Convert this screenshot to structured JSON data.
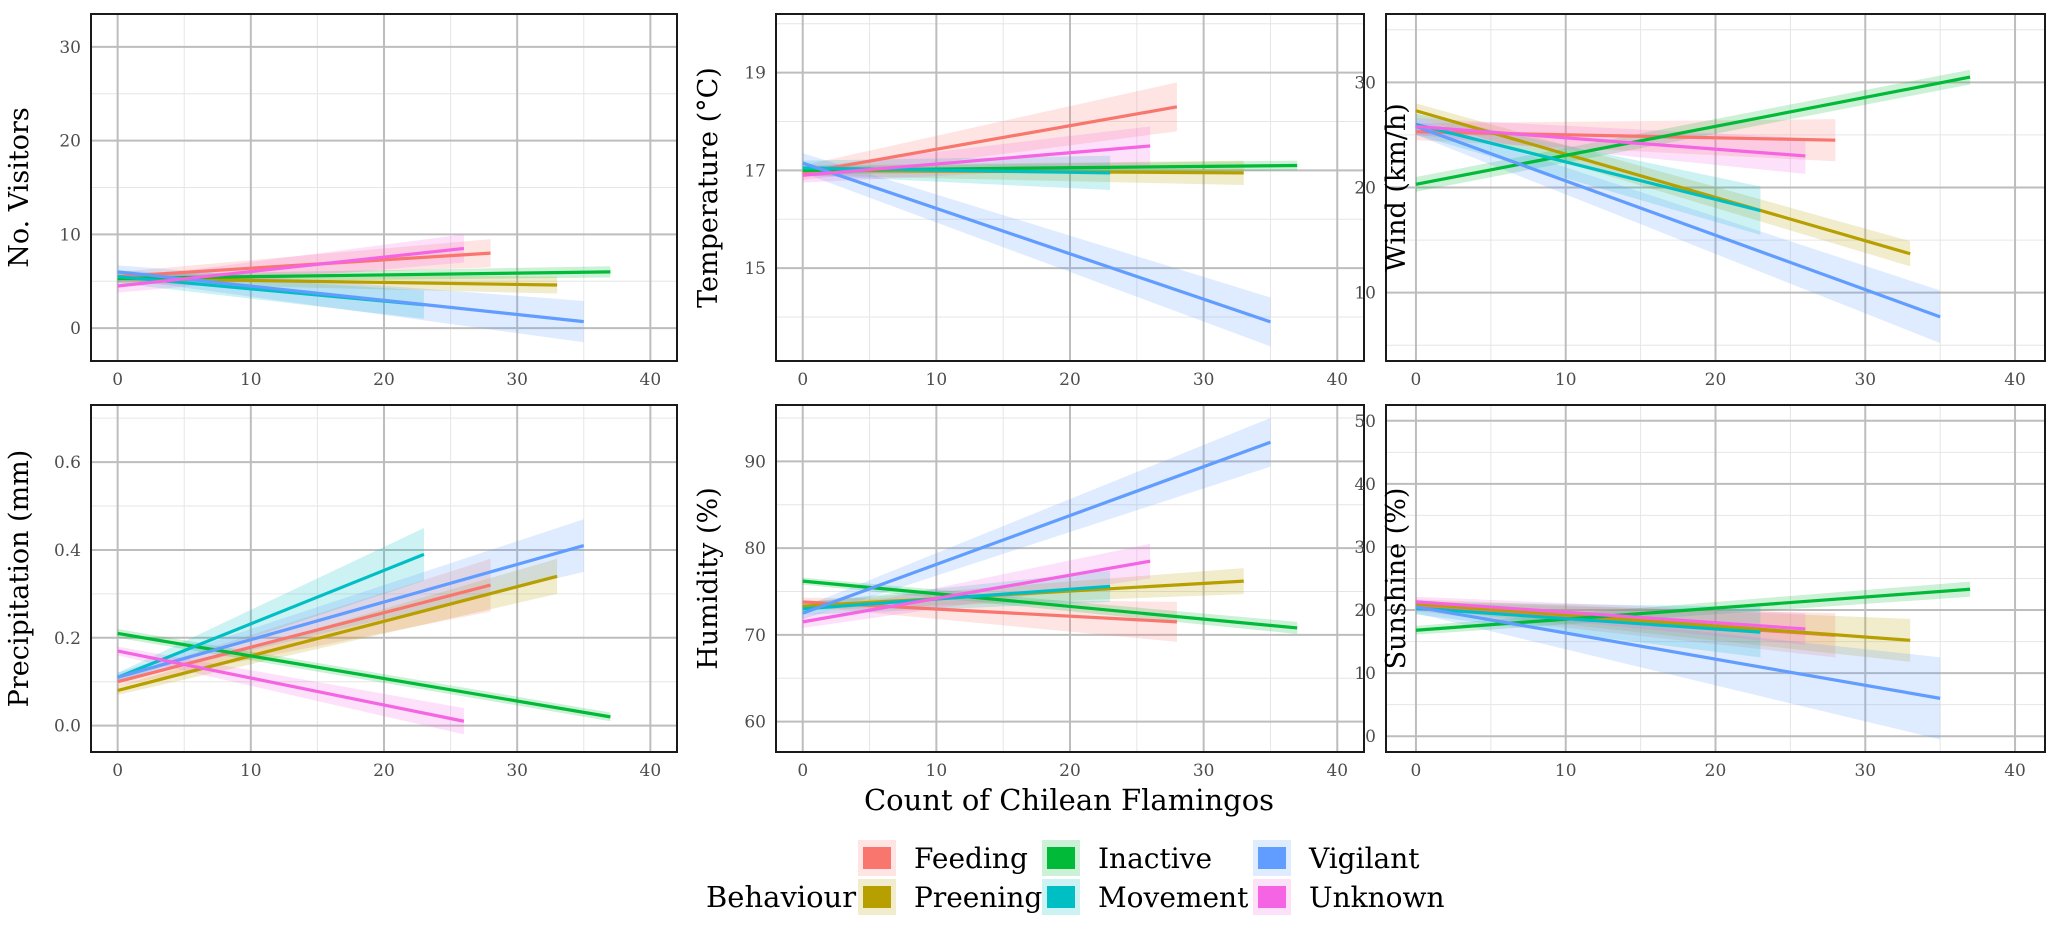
{
  "chart_data": {
    "type": "line",
    "x_axis_title": "Count of Chilean Flamingos",
    "legend": {
      "title": "Behaviour",
      "items": [
        {
          "name": "Feeding",
          "color": "#F8766D"
        },
        {
          "name": "Preening",
          "color": "#B79F00"
        },
        {
          "name": "Inactive",
          "color": "#00BA38"
        },
        {
          "name": "Movement",
          "color": "#00BFC4"
        },
        {
          "name": "Vigilant",
          "color": "#619CFF"
        },
        {
          "name": "Unknown",
          "color": "#F564E3"
        }
      ]
    },
    "panels": [
      {
        "ylabel": "No. Visitors",
        "xlim": [
          -2,
          42
        ],
        "ylim": [
          -3.5,
          33.5
        ],
        "xticks": [
          0,
          10,
          20,
          30,
          40
        ],
        "yticks": [
          0,
          10,
          20,
          30
        ],
        "series": [
          {
            "name": "Feeding",
            "x": [
              0,
              28
            ],
            "y": [
              5.5,
              8.0
            ],
            "band": [
              [
                5.0,
                6.0
              ],
              [
                6.5,
                9.5
              ]
            ]
          },
          {
            "name": "Preening",
            "x": [
              0,
              33
            ],
            "y": [
              5.3,
              4.6
            ],
            "band": [
              [
                4.8,
                5.8
              ],
              [
                3.7,
                5.5
              ]
            ]
          },
          {
            "name": "Inactive",
            "x": [
              0,
              37
            ],
            "y": [
              5.3,
              6.0
            ],
            "band": [
              [
                4.9,
                5.7
              ],
              [
                5.4,
                6.6
              ]
            ]
          },
          {
            "name": "Movement",
            "x": [
              0,
              23
            ],
            "y": [
              5.5,
              2.5
            ],
            "band": [
              [
                4.8,
                6.2
              ],
              [
                1.0,
                4.0
              ]
            ]
          },
          {
            "name": "Vigilant",
            "x": [
              0,
              35
            ],
            "y": [
              6.0,
              0.7
            ],
            "band": [
              [
                5.3,
                6.7
              ],
              [
                -1.5,
                2.9
              ]
            ]
          },
          {
            "name": "Unknown",
            "x": [
              0,
              26
            ],
            "y": [
              4.5,
              8.5
            ],
            "band": [
              [
                3.8,
                5.2
              ],
              [
                7.0,
                10.0
              ]
            ]
          }
        ]
      },
      {
        "ylabel": "Temperature (°C)",
        "xlim": [
          -2,
          42
        ],
        "ylim": [
          13.1,
          20.2
        ],
        "xticks": [
          0,
          10,
          20,
          30,
          40
        ],
        "yticks": [
          15,
          17,
          19
        ],
        "series": [
          {
            "name": "Feeding",
            "x": [
              0,
              28
            ],
            "y": [
              16.95,
              18.3
            ],
            "band": [
              [
                16.8,
                17.1
              ],
              [
                17.8,
                18.8
              ]
            ]
          },
          {
            "name": "Preening",
            "x": [
              0,
              33
            ],
            "y": [
              17.0,
              16.95
            ],
            "band": [
              [
                16.9,
                17.1
              ],
              [
                16.7,
                17.2
              ]
            ]
          },
          {
            "name": "Inactive",
            "x": [
              0,
              37
            ],
            "y": [
              17.0,
              17.1
            ],
            "band": [
              [
                16.92,
                17.08
              ],
              [
                17.0,
                17.2
              ]
            ]
          },
          {
            "name": "Movement",
            "x": [
              0,
              23
            ],
            "y": [
              17.05,
              16.95
            ],
            "band": [
              [
                16.9,
                17.2
              ],
              [
                16.6,
                17.3
              ]
            ]
          },
          {
            "name": "Vigilant",
            "x": [
              0,
              35
            ],
            "y": [
              17.15,
              13.9
            ],
            "band": [
              [
                16.95,
                17.35
              ],
              [
                13.4,
                14.4
              ]
            ]
          },
          {
            "name": "Unknown",
            "x": [
              0,
              26
            ],
            "y": [
              16.9,
              17.5
            ],
            "band": [
              [
                16.75,
                17.05
              ],
              [
                17.1,
                17.9
              ]
            ]
          }
        ]
      },
      {
        "ylabel": "Wind (km/h)",
        "xlim": [
          -2,
          42
        ],
        "ylim": [
          3.5,
          36.5
        ],
        "xticks": [
          0,
          10,
          20,
          30,
          40
        ],
        "yticks": [
          10,
          20,
          30
        ],
        "series": [
          {
            "name": "Feeding",
            "x": [
              0,
              28
            ],
            "y": [
              25.3,
              24.5
            ],
            "band": [
              [
                24.5,
                26.1
              ],
              [
                22.5,
                26.5
              ]
            ]
          },
          {
            "name": "Preening",
            "x": [
              0,
              33
            ],
            "y": [
              27.3,
              13.7
            ],
            "band": [
              [
                26.6,
                28.0
              ],
              [
                12.5,
                14.9
              ]
            ]
          },
          {
            "name": "Inactive",
            "x": [
              0,
              37
            ],
            "y": [
              20.3,
              30.5
            ],
            "band": [
              [
                19.6,
                21.0
              ],
              [
                29.8,
                31.2
              ]
            ]
          },
          {
            "name": "Movement",
            "x": [
              0,
              23
            ],
            "y": [
              26.0,
              17.8
            ],
            "band": [
              [
                25.0,
                27.0
              ],
              [
                15.5,
                20.1
              ]
            ]
          },
          {
            "name": "Vigilant",
            "x": [
              0,
              35
            ],
            "y": [
              25.8,
              7.7
            ],
            "band": [
              [
                25.0,
                26.6
              ],
              [
                5.2,
                10.2
              ]
            ]
          },
          {
            "name": "Unknown",
            "x": [
              0,
              26
            ],
            "y": [
              25.8,
              23.0
            ],
            "band": [
              [
                25.0,
                26.6
              ],
              [
                21.3,
                24.7
              ]
            ]
          }
        ]
      },
      {
        "ylabel": "Precipitation (mm)",
        "xlim": [
          -2,
          42
        ],
        "ylim": [
          -0.06,
          0.73
        ],
        "xticks": [
          0,
          10,
          20,
          30,
          40
        ],
        "yticks": [
          0.0,
          0.2,
          0.4,
          0.6
        ],
        "series": [
          {
            "name": "Feeding",
            "x": [
              0,
              28
            ],
            "y": [
              0.1,
              0.32
            ],
            "band": [
              [
                0.09,
                0.11
              ],
              [
                0.26,
                0.38
              ]
            ]
          },
          {
            "name": "Preening",
            "x": [
              0,
              33
            ],
            "y": [
              0.08,
              0.34
            ],
            "band": [
              [
                0.07,
                0.09
              ],
              [
                0.3,
                0.38
              ]
            ]
          },
          {
            "name": "Inactive",
            "x": [
              0,
              37
            ],
            "y": [
              0.21,
              0.02
            ],
            "band": [
              [
                0.2,
                0.22
              ],
              [
                0.01,
                0.03
              ]
            ]
          },
          {
            "name": "Movement",
            "x": [
              0,
              23
            ],
            "y": [
              0.11,
              0.39
            ],
            "band": [
              [
                0.1,
                0.12
              ],
              [
                0.33,
                0.45
              ]
            ]
          },
          {
            "name": "Vigilant",
            "x": [
              0,
              35
            ],
            "y": [
              0.11,
              0.41
            ],
            "band": [
              [
                0.1,
                0.12
              ],
              [
                0.35,
                0.47
              ]
            ]
          },
          {
            "name": "Unknown",
            "x": [
              0,
              26
            ],
            "y": [
              0.17,
              0.01
            ],
            "band": [
              [
                0.16,
                0.18
              ],
              [
                -0.02,
                0.04
              ]
            ]
          }
        ]
      },
      {
        "ylabel": "Humidity (%)",
        "xlim": [
          -2,
          42
        ],
        "ylim": [
          56.5,
          96.5
        ],
        "xticks": [
          0,
          10,
          20,
          30,
          40
        ],
        "yticks": [
          60,
          70,
          80,
          90
        ],
        "series": [
          {
            "name": "Feeding",
            "x": [
              0,
              28
            ],
            "y": [
              73.8,
              71.5
            ],
            "band": [
              [
                73.3,
                74.3
              ],
              [
                69.2,
                73.8
              ]
            ]
          },
          {
            "name": "Preening",
            "x": [
              0,
              33
            ],
            "y": [
              73.3,
              76.2
            ],
            "band": [
              [
                72.8,
                73.8
              ],
              [
                74.7,
                77.7
              ]
            ]
          },
          {
            "name": "Inactive",
            "x": [
              0,
              37
            ],
            "y": [
              76.2,
              70.8
            ],
            "band": [
              [
                75.8,
                76.6
              ],
              [
                70.1,
                71.5
              ]
            ]
          },
          {
            "name": "Movement",
            "x": [
              0,
              23
            ],
            "y": [
              73.0,
              75.6
            ],
            "band": [
              [
                72.3,
                73.7
              ],
              [
                73.8,
                77.4
              ]
            ]
          },
          {
            "name": "Vigilant",
            "x": [
              0,
              35
            ],
            "y": [
              72.5,
              92.2
            ],
            "band": [
              [
                71.8,
                73.2
              ],
              [
                89.4,
                95.0
              ]
            ]
          },
          {
            "name": "Unknown",
            "x": [
              0,
              26
            ],
            "y": [
              71.5,
              78.5
            ],
            "band": [
              [
                70.8,
                72.2
              ],
              [
                76.5,
                80.5
              ]
            ]
          }
        ]
      },
      {
        "ylabel": "Sunshine (%)",
        "xlim": [
          -2,
          42
        ],
        "ylim": [
          -2.5,
          52.5
        ],
        "xticks": [
          0,
          10,
          20,
          30,
          40
        ],
        "yticks": [
          0,
          10,
          20,
          30,
          40,
          50
        ],
        "series": [
          {
            "name": "Feeding",
            "x": [
              0,
              28
            ],
            "y": [
              20.5,
              16.0
            ],
            "band": [
              [
                19.8,
                21.2
              ],
              [
                12.5,
                19.5
              ]
            ]
          },
          {
            "name": "Preening",
            "x": [
              0,
              33
            ],
            "y": [
              21.0,
              15.2
            ],
            "band": [
              [
                20.3,
                21.7
              ],
              [
                11.8,
                18.6
              ]
            ]
          },
          {
            "name": "Inactive",
            "x": [
              0,
              37
            ],
            "y": [
              16.8,
              23.3
            ],
            "band": [
              [
                16.1,
                17.5
              ],
              [
                22.1,
                24.5
              ]
            ]
          },
          {
            "name": "Movement",
            "x": [
              0,
              23
            ],
            "y": [
              20.3,
              16.5
            ],
            "band": [
              [
                19.3,
                21.3
              ],
              [
                12.5,
                20.5
              ]
            ]
          },
          {
            "name": "Vigilant",
            "x": [
              0,
              35
            ],
            "y": [
              20.5,
              6.0
            ],
            "band": [
              [
                19.5,
                21.5
              ],
              [
                -0.5,
                12.5
              ]
            ]
          },
          {
            "name": "Unknown",
            "x": [
              0,
              26
            ],
            "y": [
              21.3,
              17.0
            ],
            "band": [
              [
                20.5,
                22.1
              ],
              [
                14.5,
                19.5
              ]
            ]
          }
        ]
      }
    ]
  }
}
